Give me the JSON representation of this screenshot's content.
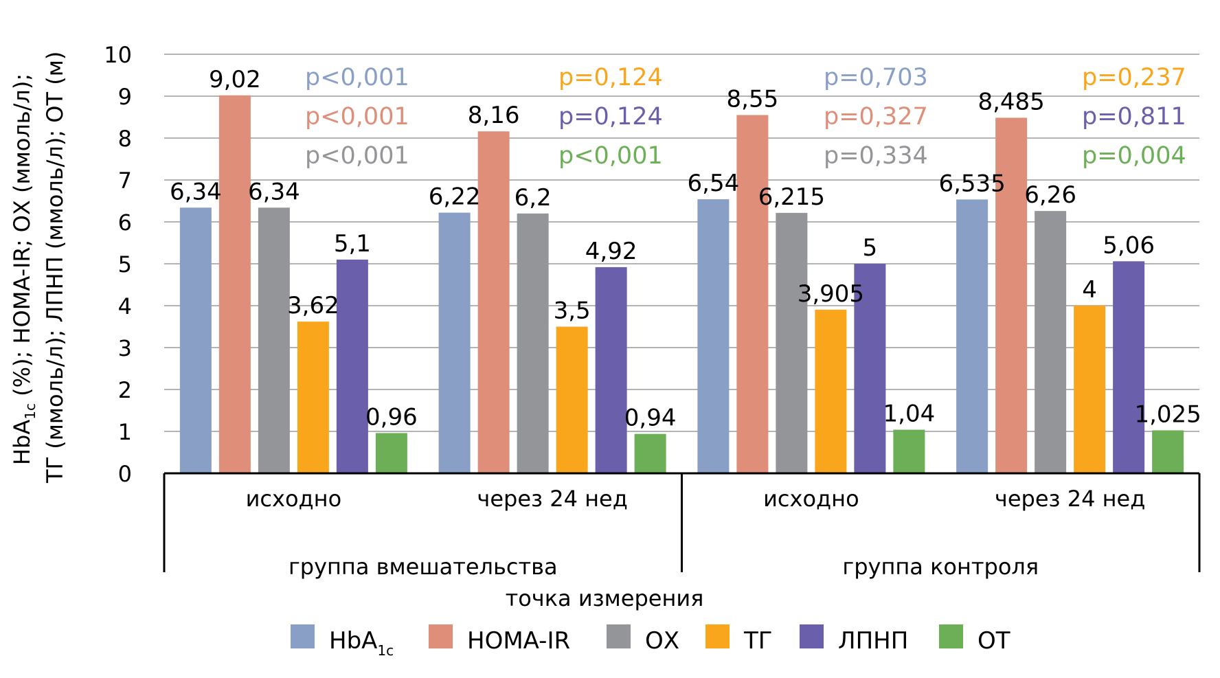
{
  "chart_data": {
    "type": "bar",
    "title": "",
    "ylabel_line1": {
      "pre": "HbA",
      "sub": "1c",
      "post": " (%); HOMA-IR; ОХ (ммоль/л);"
    },
    "ylabel_line2": "ТГ (ммоль/л); ЛПНП (ммоль/л); ОТ (м)",
    "xlabel": "точка измерения",
    "ylim": [
      0,
      10
    ],
    "yticks": [
      "0",
      "1",
      "2",
      "3",
      "4",
      "5",
      "6",
      "7",
      "8",
      "9",
      "10"
    ],
    "grid": true,
    "legend_position": "bottom",
    "groups": [
      {
        "label": "группа вмешательства",
        "categories": [
          "исходно",
          "через 24 нед"
        ]
      },
      {
        "label": "группа контроля",
        "categories": [
          "исходно",
          "через 24 нед"
        ]
      }
    ],
    "categories": [
      "исходно",
      "через 24 нед",
      "исходно",
      "через 24 нед"
    ],
    "series": [
      {
        "name": "HbA",
        "name_sub": "1c",
        "color": "#8A9FC5",
        "values": [
          6.34,
          6.22,
          6.54,
          6.535
        ],
        "labels": [
          "6,34",
          "6,22",
          "6,54",
          "6,535"
        ]
      },
      {
        "name": "HOMA-IR",
        "color": "#DF8F79",
        "values": [
          9.02,
          8.16,
          8.55,
          8.485
        ],
        "labels": [
          "9,02",
          "8,16",
          "8,55",
          "8,485"
        ]
      },
      {
        "name": "ОХ",
        "color": "#939598",
        "values": [
          6.34,
          6.2,
          6.215,
          6.26
        ],
        "labels": [
          "6,34",
          "6,2",
          "6,215",
          "6,26"
        ]
      },
      {
        "name": "ТГ",
        "color": "#F9A61C",
        "values": [
          3.62,
          3.5,
          3.905,
          4
        ],
        "labels": [
          "3,62",
          "3,5",
          "3,905",
          "4"
        ]
      },
      {
        "name": "ЛПНП",
        "color": "#6A5FAA",
        "values": [
          5.1,
          4.92,
          5,
          5.06
        ],
        "labels": [
          "5,1",
          "4,92",
          "5",
          "5,06"
        ]
      },
      {
        "name": "ОТ",
        "color": "#6CAF57",
        "values": [
          0.96,
          0.94,
          1.04,
          1.025
        ],
        "labels": [
          "0,96",
          "0,94",
          "1,04",
          "1,025"
        ]
      }
    ],
    "annotations": [
      {
        "category_index": 0,
        "lines": [
          {
            "text": "p<0,001",
            "color": "#8A9FC5"
          },
          {
            "text": "p<0,001",
            "color": "#DF8F79"
          },
          {
            "text": "p<0,001",
            "color": "#939598"
          }
        ]
      },
      {
        "category_index": 1,
        "lines": [
          {
            "text": "p=0,124",
            "color": "#F9A61C"
          },
          {
            "text": "p=0,124",
            "color": "#6A5FAA"
          },
          {
            "text": "p<0,001",
            "color": "#6CAF57"
          }
        ]
      },
      {
        "category_index": 2,
        "lines": [
          {
            "text": "p=0,703",
            "color": "#8A9FC5"
          },
          {
            "text": "p=0,327",
            "color": "#DF8F79"
          },
          {
            "text": "p=0,334",
            "color": "#939598"
          }
        ]
      },
      {
        "category_index": 3,
        "lines": [
          {
            "text": "p=0,237",
            "color": "#F9A61C"
          },
          {
            "text": "p=0,811",
            "color": "#6A5FAA"
          },
          {
            "text": "p=0,004",
            "color": "#6CAF57"
          }
        ]
      }
    ]
  }
}
